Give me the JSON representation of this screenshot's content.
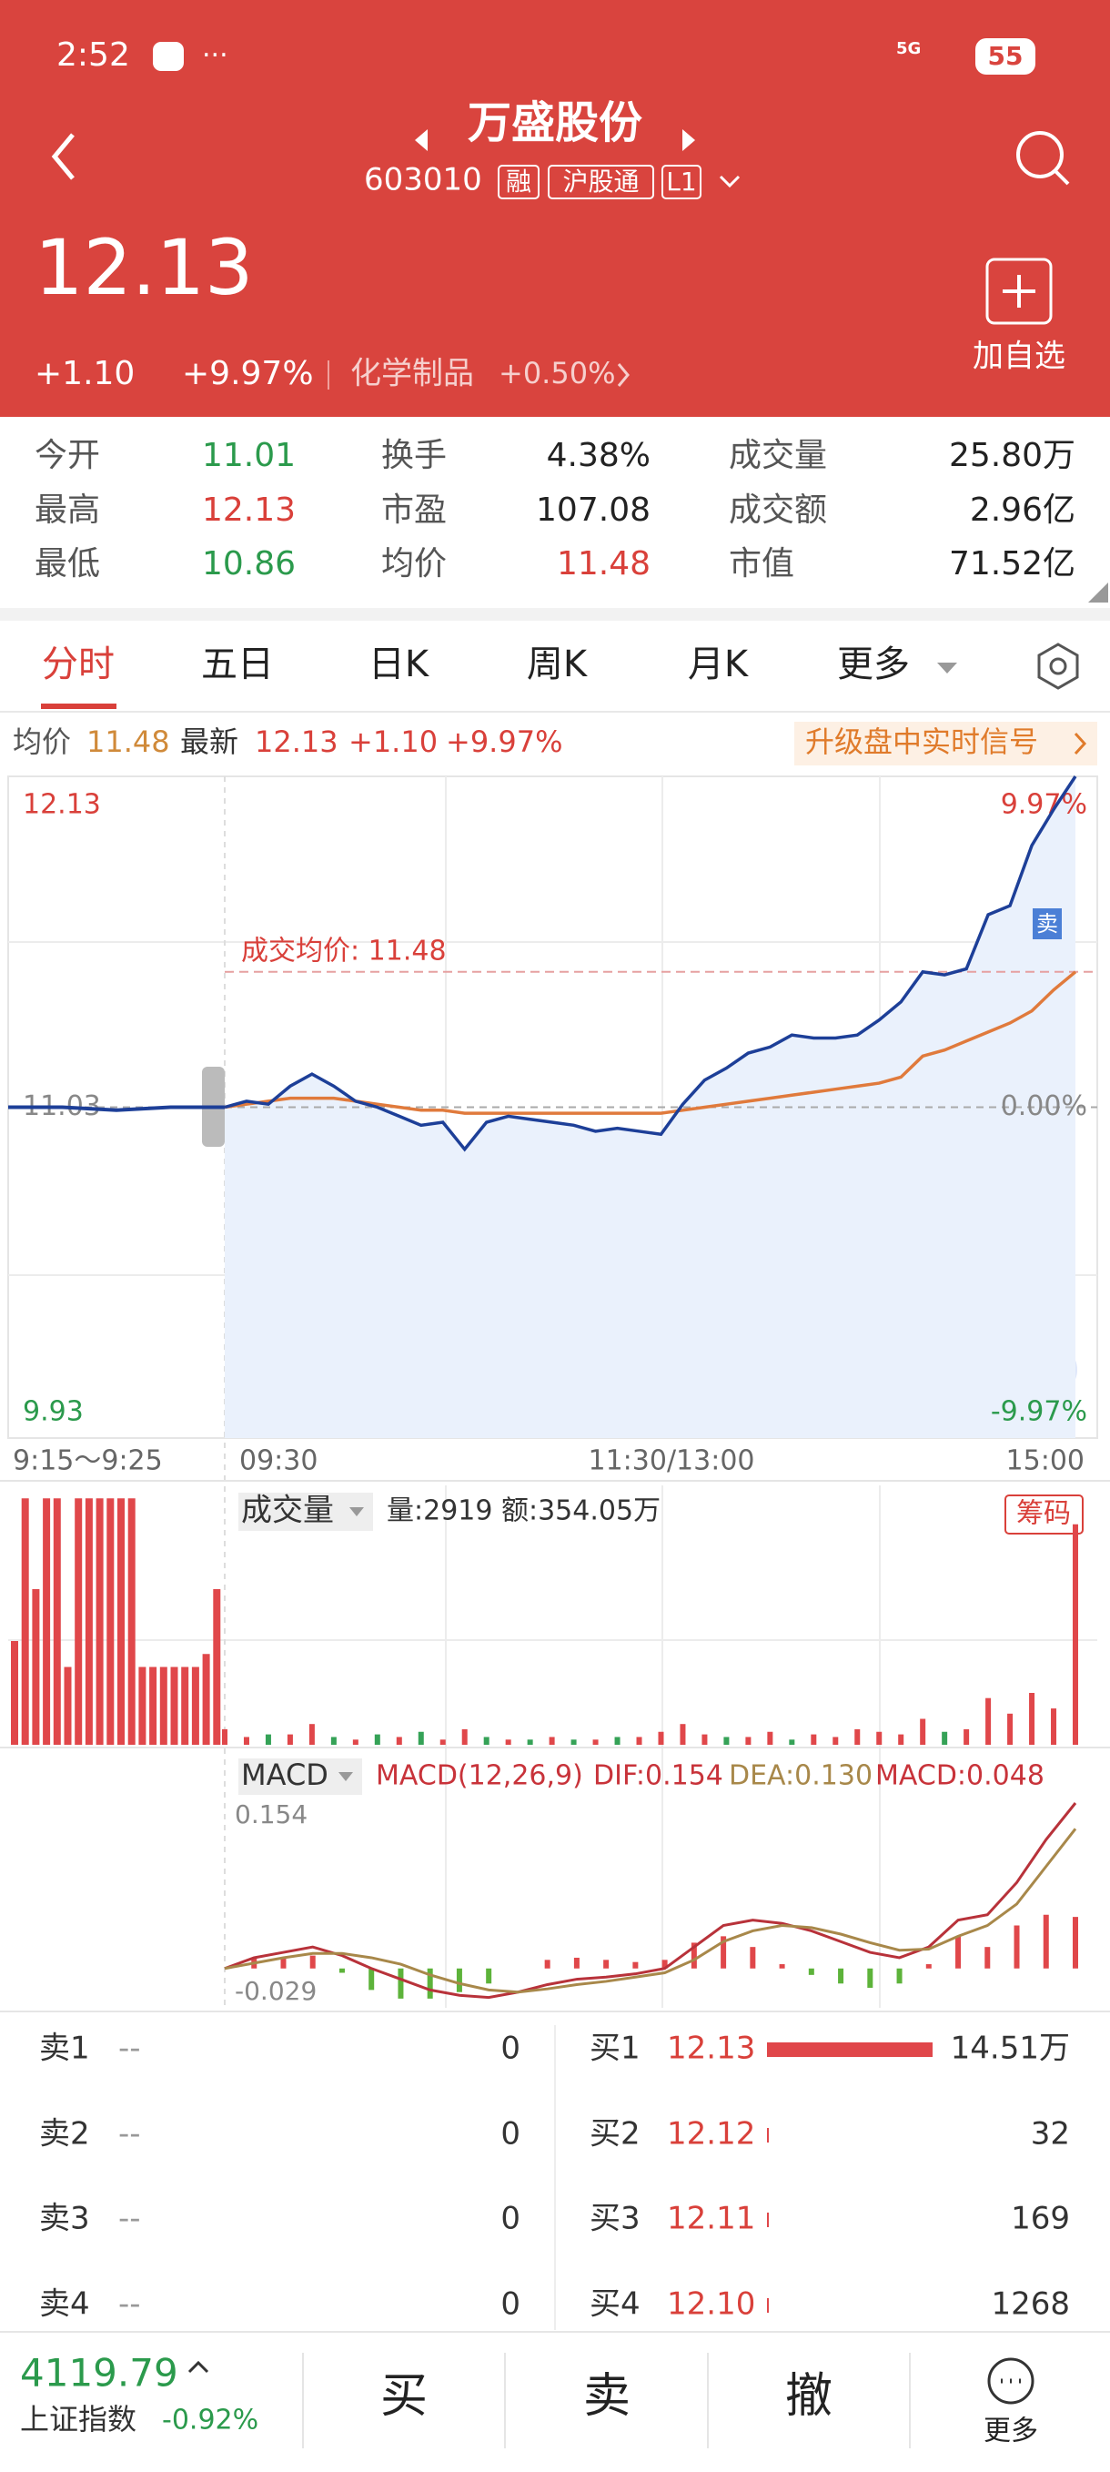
{
  "status": {
    "time": "2:52",
    "network": "5G",
    "battery": "55"
  },
  "header": {
    "title": "万盛股份",
    "code": "603010",
    "tags": [
      "融",
      "沪股通",
      "L1"
    ],
    "price": "12.13",
    "change": "+1.10",
    "change_pct": "+9.97%",
    "sector": "化学制品",
    "sector_change": "+0.50%",
    "add_watch": "加自选"
  },
  "stats": [
    {
      "label": "今开",
      "value": "11.01",
      "color": "#2b9a4c"
    },
    {
      "label": "换手",
      "value": "4.38%",
      "color": "#222222"
    },
    {
      "label": "成交量",
      "value": "25.80万",
      "color": "#222222"
    },
    {
      "label": "最高",
      "value": "12.13",
      "color": "#d9403a"
    },
    {
      "label": "市盈",
      "value": "107.08",
      "color": "#222222"
    },
    {
      "label": "成交额",
      "value": "2.96亿",
      "color": "#222222"
    },
    {
      "label": "最低",
      "value": "10.86",
      "color": "#2b9a4c"
    },
    {
      "label": "均价",
      "value": "11.48",
      "color": "#d9403a"
    },
    {
      "label": "市值",
      "value": "71.52亿",
      "color": "#222222"
    }
  ],
  "tabs": [
    "分时",
    "五日",
    "日K",
    "周K",
    "月K",
    "更多"
  ],
  "info": {
    "avg_label": "均价",
    "avg": "11.48",
    "latest_label": "最新",
    "latest": "12.13",
    "change": "+1.10",
    "change_pct": "+9.97%",
    "promo": "升级盘中实时信号"
  },
  "chart_data": [
    {
      "type": "line",
      "ylim": [
        9.93,
        12.13
      ],
      "yticks": [
        9.93,
        11.03,
        12.13
      ],
      "y2lim": [
        -9.97,
        9.97
      ],
      "y2ticks": [
        {
          "value": -9.97,
          "label": "-9.97%"
        },
        {
          "value": 0,
          "label": "0.00%"
        },
        {
          "value": 9.97,
          "label": "9.97%"
        }
      ],
      "x_labels": [
        "9:15～9:25",
        "09:30",
        "11:30/13:00",
        "15:00"
      ],
      "premarket_values": [
        11.03,
        11.03,
        11.02,
        11.03,
        11.03
      ],
      "series": [
        {
          "color": "#1d3f98",
          "values": [
            11.03,
            11.05,
            11.04,
            11.1,
            11.14,
            11.1,
            11.05,
            11.03,
            11.0,
            10.97,
            10.98,
            10.89,
            10.98,
            11.0,
            10.99,
            10.98,
            10.97,
            10.95,
            10.96,
            10.95,
            10.94,
            11.04,
            11.12,
            11.16,
            11.21,
            11.23,
            11.27,
            11.26,
            11.26,
            11.27,
            11.32,
            11.38,
            11.48,
            11.47,
            11.49,
            11.67,
            11.7,
            11.9,
            12.02,
            12.13
          ]
        },
        {
          "color": "#e07a3c",
          "values": [
            11.03,
            11.04,
            11.05,
            11.06,
            11.06,
            11.06,
            11.05,
            11.04,
            11.03,
            11.02,
            11.02,
            11.01,
            11.01,
            11.01,
            11.01,
            11.01,
            11.01,
            11.01,
            11.01,
            11.01,
            11.01,
            11.02,
            11.03,
            11.04,
            11.05,
            11.06,
            11.07,
            11.08,
            11.09,
            11.1,
            11.11,
            11.13,
            11.2,
            11.22,
            11.25,
            11.28,
            11.31,
            11.35,
            11.42,
            11.48
          ]
        }
      ],
      "avg_line": {
        "label": "成交均价: 11.48",
        "value": 11.48
      },
      "marker_label": "卖"
    },
    {
      "type": "bar",
      "title": "成交量",
      "info": "量:2919 额:354.05万",
      "badge": "筹码",
      "ylim": [
        0,
        100
      ],
      "premarket_values": [
        40,
        95,
        60,
        95,
        95,
        30,
        95,
        95,
        95,
        95,
        95,
        95,
        30,
        30,
        30,
        30,
        30,
        30,
        35,
        60
      ],
      "series": [
        {
          "color": "#e0474a",
          "values": [
            6,
            3,
            null,
            4,
            8,
            null,
            2,
            null,
            3,
            null,
            2,
            6,
            null,
            2,
            null,
            3,
            null,
            2,
            null,
            3,
            5,
            8,
            4,
            null,
            3,
            5,
            null,
            4,
            3,
            6,
            5,
            4,
            10,
            null,
            6,
            18,
            12,
            20,
            14,
            85
          ]
        },
        {
          "color": "#35a257",
          "values": [
            null,
            null,
            4,
            null,
            null,
            3,
            null,
            4,
            null,
            5,
            null,
            null,
            3,
            null,
            2,
            null,
            2,
            null,
            3,
            null,
            null,
            null,
            null,
            3,
            null,
            null,
            2,
            null,
            null,
            null,
            null,
            null,
            null,
            5,
            null,
            null,
            null,
            null,
            null,
            null
          ]
        }
      ]
    },
    {
      "type": "macd",
      "title": "MACD",
      "params": "MACD(12,26,9)",
      "dif_label": "DIF:0.154",
      "dea_label": "DEA:0.130",
      "macd_label": "MACD:0.048",
      "ylim": [
        -0.029,
        0.154
      ],
      "yticks": [
        -0.029,
        0.154
      ],
      "up_color": "#e0474a",
      "down_color": "#5db33a",
      "series": [
        {
          "color": "#b8323a",
          "values": [
            0.0,
            0.01,
            0.015,
            0.02,
            0.012,
            0.0,
            -0.01,
            -0.02,
            -0.025,
            -0.027,
            -0.022,
            -0.015,
            -0.01,
            -0.008,
            -0.005,
            0.0,
            0.02,
            0.04,
            0.045,
            0.042,
            0.035,
            0.025,
            0.015,
            0.01,
            0.02,
            0.045,
            0.05,
            0.08,
            0.12,
            0.154
          ]
        },
        {
          "color": "#a8884a",
          "values": [
            0.0,
            0.005,
            0.01,
            0.014,
            0.014,
            0.01,
            0.004,
            -0.006,
            -0.014,
            -0.02,
            -0.022,
            -0.019,
            -0.015,
            -0.012,
            -0.008,
            -0.004,
            0.008,
            0.025,
            0.035,
            0.04,
            0.038,
            0.032,
            0.024,
            0.017,
            0.018,
            0.03,
            0.04,
            0.06,
            0.095,
            0.13
          ]
        }
      ],
      "histogram": [
        0,
        0.01,
        0.01,
        0.012,
        -0.004,
        -0.02,
        -0.028,
        -0.028,
        -0.022,
        -0.014,
        0,
        0.008,
        0.01,
        0.008,
        0.006,
        0.008,
        0.024,
        0.03,
        0.02,
        0.004,
        -0.006,
        -0.014,
        -0.018,
        -0.014,
        0.004,
        0.03,
        0.02,
        0.04,
        0.05,
        0.048
      ]
    }
  ],
  "order_book": {
    "asks": [
      {
        "level": "卖1",
        "price": "--",
        "volume": "0"
      },
      {
        "level": "卖2",
        "price": "--",
        "volume": "0"
      },
      {
        "level": "卖3",
        "price": "--",
        "volume": "0"
      },
      {
        "level": "卖4",
        "price": "--",
        "volume": "0"
      }
    ],
    "bids": {
      "levels": [
        "买1",
        "买2",
        "买3",
        "买4"
      ],
      "prices": [
        "12.13",
        "12.12",
        "12.11",
        "12.10"
      ],
      "volumes": [
        145100,
        32,
        169,
        1268
      ],
      "volume_labels": [
        "14.51万",
        "32",
        "169",
        "1268"
      ]
    }
  },
  "footer": {
    "index_value": "4119.79",
    "index_name": "上证指数",
    "index_change": "-0.92%",
    "buttons": [
      "买",
      "卖",
      "撤",
      "更多"
    ]
  }
}
